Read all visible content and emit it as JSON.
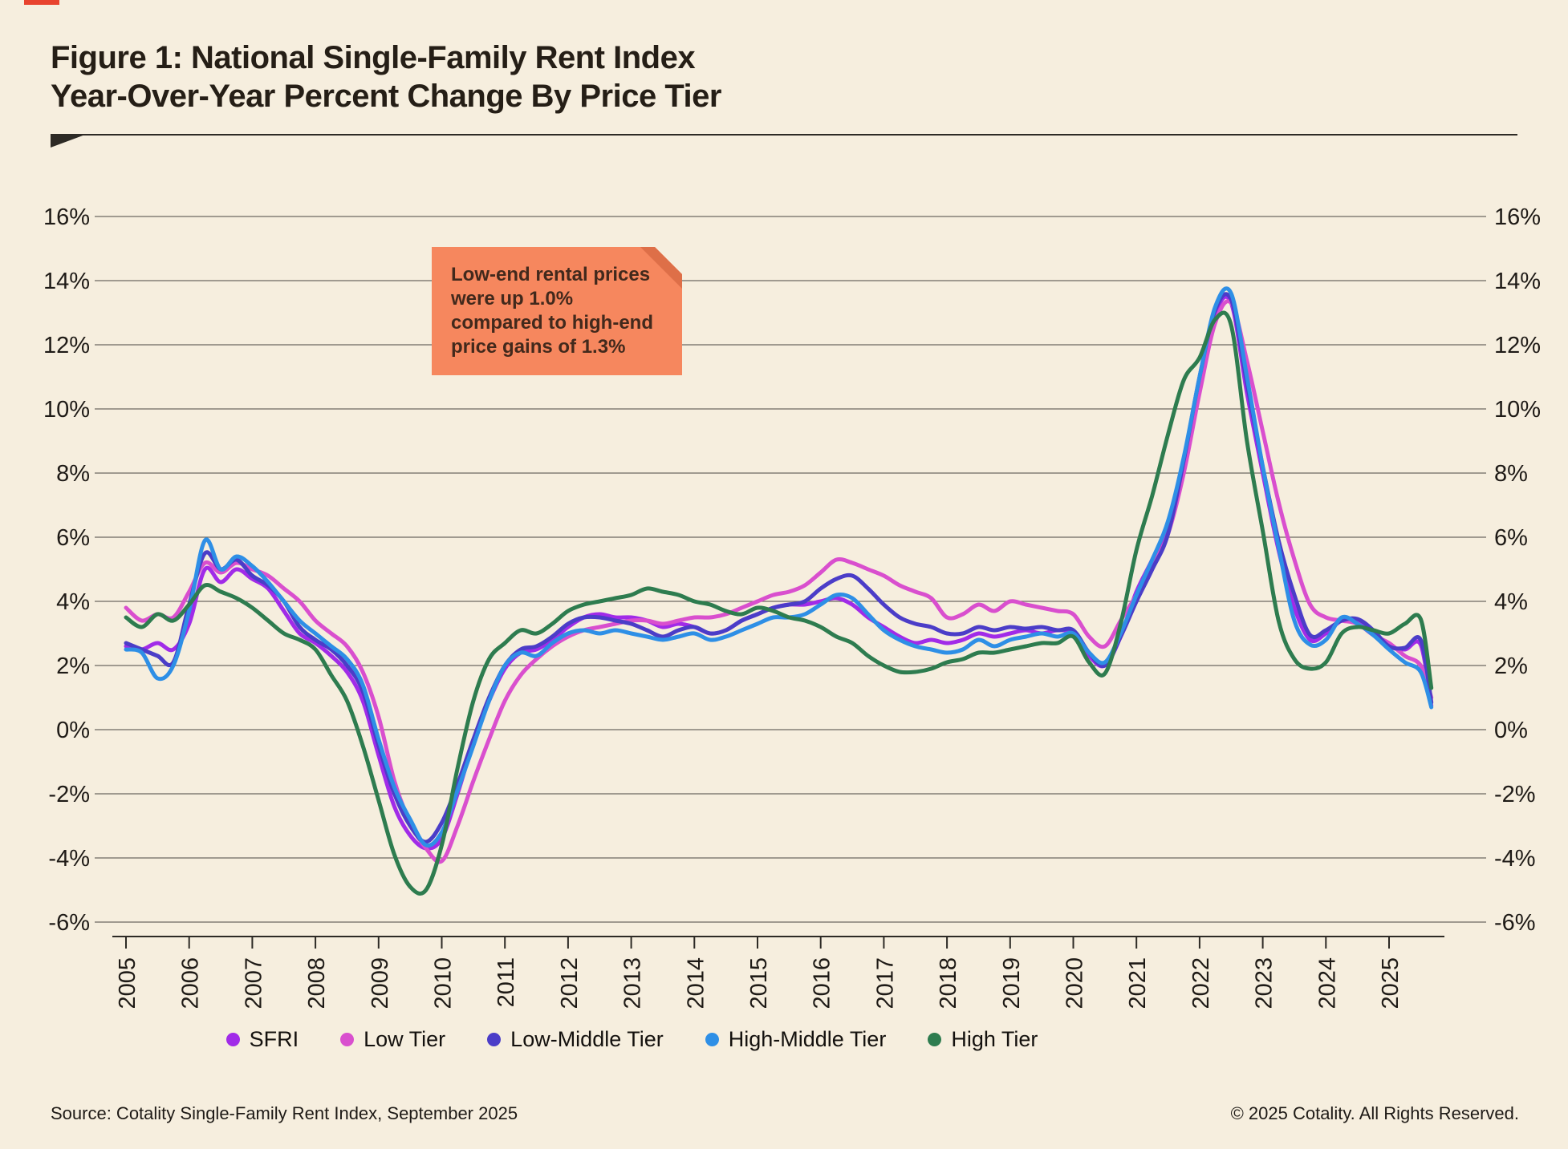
{
  "title": {
    "line1": "Figure 1: National Single-Family Rent Index",
    "line2": "Year-Over-Year Percent Change By Price Tier"
  },
  "callout": {
    "text": "Low-end rental prices were up 1.0% compared to high-end price gains of 1.3%",
    "background": "#f6875e",
    "fold_color": "#de6f48"
  },
  "footer": {
    "source": "Source: Cotality Single-Family Rent Index, September 2025",
    "copyright": "© 2025 Cotality. All Rights Reserved."
  },
  "colors": {
    "background": "#f6eede",
    "text": "#1e1a16",
    "grid": "#54514b",
    "axis": "#2d2a25",
    "top_accent": "#e8432e"
  },
  "chart_data": {
    "type": "line",
    "title": "National Single-Family Rent Index Year-Over-Year Percent Change By Price Tier",
    "xlabel": "",
    "ylabel": "Year-over-year percent change",
    "unit": "%",
    "grid": true,
    "legend_position": "bottom",
    "ylim": [
      -6,
      16
    ],
    "xlim": [
      2004.8,
      2025.9
    ],
    "y_ticks": [
      16,
      14,
      12,
      10,
      8,
      6,
      4,
      2,
      0,
      -2,
      -4,
      -6
    ],
    "x_ticks": [
      2005,
      2006,
      2007,
      2008,
      2009,
      2010,
      2011,
      2012,
      2013,
      2014,
      2015,
      2016,
      2017,
      2018,
      2019,
      2020,
      2021,
      2022,
      2023,
      2024,
      2025
    ],
    "sampling": "quarterly estimates read from plotted monthly lines, Jan 2005 - Sep 2025",
    "x_years": [
      2005.0,
      2005.25,
      2005.5,
      2005.75,
      2006.0,
      2006.25,
      2006.5,
      2006.75,
      2007.0,
      2007.25,
      2007.5,
      2007.75,
      2008.0,
      2008.25,
      2008.5,
      2008.75,
      2009.0,
      2009.25,
      2009.5,
      2009.75,
      2010.0,
      2010.25,
      2010.5,
      2010.75,
      2011.0,
      2011.25,
      2011.5,
      2011.75,
      2012.0,
      2012.25,
      2012.5,
      2012.75,
      2013.0,
      2013.25,
      2013.5,
      2013.75,
      2014.0,
      2014.25,
      2014.5,
      2014.75,
      2015.0,
      2015.25,
      2015.5,
      2015.75,
      2016.0,
      2016.25,
      2016.5,
      2016.75,
      2017.0,
      2017.25,
      2017.5,
      2017.75,
      2018.0,
      2018.25,
      2018.5,
      2018.75,
      2019.0,
      2019.25,
      2019.5,
      2019.75,
      2020.0,
      2020.25,
      2020.5,
      2020.75,
      2021.0,
      2021.25,
      2021.5,
      2021.75,
      2022.0,
      2022.25,
      2022.5,
      2022.75,
      2023.0,
      2023.25,
      2023.5,
      2023.75,
      2024.0,
      2024.25,
      2024.5,
      2024.75,
      2025.0,
      2025.25,
      2025.5,
      2025.67
    ],
    "series": [
      {
        "name": "SFRI",
        "color": "#a12be8",
        "values": [
          2.6,
          2.5,
          2.7,
          2.5,
          3.3,
          5.0,
          4.6,
          5.0,
          4.7,
          4.4,
          3.7,
          3.0,
          2.7,
          2.3,
          1.8,
          0.9,
          -0.8,
          -2.4,
          -3.3,
          -3.7,
          -3.4,
          -2.0,
          -0.4,
          0.9,
          1.9,
          2.4,
          2.5,
          2.8,
          3.2,
          3.5,
          3.6,
          3.5,
          3.5,
          3.4,
          3.2,
          3.3,
          3.2,
          3.0,
          3.1,
          3.4,
          3.6,
          3.8,
          3.9,
          3.9,
          4.0,
          4.1,
          3.9,
          3.5,
          3.2,
          2.9,
          2.7,
          2.8,
          2.7,
          2.8,
          3.0,
          2.9,
          3.0,
          3.1,
          3.0,
          3.1,
          3.0,
          2.3,
          2.0,
          2.9,
          4.3,
          5.3,
          6.4,
          8.3,
          10.9,
          13.0,
          13.3,
          10.5,
          8.0,
          5.6,
          3.8,
          2.8,
          3.0,
          3.4,
          3.35,
          3.05,
          2.6,
          2.5,
          2.65,
          0.75
        ]
      },
      {
        "name": "Low Tier",
        "color": "#d94fce",
        "values": [
          3.8,
          3.4,
          3.6,
          3.5,
          4.3,
          5.2,
          4.9,
          5.2,
          5.0,
          4.8,
          4.4,
          4.0,
          3.4,
          3.0,
          2.6,
          1.8,
          0.4,
          -1.6,
          -2.9,
          -3.7,
          -4.1,
          -3.0,
          -1.6,
          -0.3,
          0.9,
          1.7,
          2.2,
          2.6,
          2.9,
          3.1,
          3.2,
          3.3,
          3.4,
          3.4,
          3.3,
          3.4,
          3.5,
          3.5,
          3.6,
          3.8,
          4.0,
          4.2,
          4.3,
          4.5,
          4.9,
          5.3,
          5.2,
          5.0,
          4.8,
          4.5,
          4.3,
          4.1,
          3.5,
          3.6,
          3.9,
          3.7,
          4.0,
          3.9,
          3.8,
          3.7,
          3.6,
          2.9,
          2.6,
          3.4,
          4.2,
          5.1,
          6.1,
          8.0,
          10.5,
          12.7,
          13.3,
          11.5,
          9.3,
          7.1,
          5.3,
          3.9,
          3.5,
          3.4,
          3.3,
          2.95,
          2.7,
          2.3,
          2.0,
          1.0
        ]
      },
      {
        "name": "Low-Middle Tier",
        "color": "#4b3dc8",
        "values": [
          2.7,
          2.5,
          2.3,
          2.1,
          3.9,
          5.5,
          5.0,
          5.3,
          4.8,
          4.5,
          4.0,
          3.2,
          2.8,
          2.5,
          2.0,
          1.2,
          -0.5,
          -2.0,
          -3.0,
          -3.5,
          -2.9,
          -1.7,
          -0.3,
          1.0,
          2.0,
          2.5,
          2.6,
          2.9,
          3.3,
          3.5,
          3.5,
          3.4,
          3.3,
          3.1,
          2.9,
          3.1,
          3.2,
          3.0,
          3.1,
          3.4,
          3.6,
          3.8,
          3.9,
          4.0,
          4.4,
          4.7,
          4.8,
          4.4,
          3.9,
          3.5,
          3.3,
          3.2,
          3.0,
          3.0,
          3.2,
          3.1,
          3.2,
          3.15,
          3.2,
          3.1,
          3.1,
          2.4,
          2.0,
          2.9,
          4.0,
          5.0,
          6.1,
          8.4,
          11.0,
          13.1,
          13.4,
          10.8,
          8.2,
          5.9,
          4.2,
          2.95,
          3.1,
          3.4,
          3.45,
          3.1,
          2.6,
          2.55,
          2.8,
          0.85
        ]
      },
      {
        "name": "High-Middle Tier",
        "color": "#2e8fe6",
        "values": [
          2.5,
          2.4,
          1.6,
          2.0,
          3.7,
          5.9,
          5.0,
          5.4,
          5.1,
          4.6,
          4.0,
          3.4,
          3.0,
          2.6,
          2.2,
          1.4,
          -0.3,
          -1.8,
          -2.8,
          -3.6,
          -3.2,
          -1.9,
          -0.5,
          0.9,
          2.0,
          2.4,
          2.3,
          2.7,
          3.0,
          3.1,
          3.0,
          3.1,
          3.0,
          2.9,
          2.8,
          2.9,
          3.0,
          2.8,
          2.9,
          3.1,
          3.3,
          3.5,
          3.5,
          3.6,
          3.9,
          4.2,
          4.1,
          3.6,
          3.1,
          2.8,
          2.6,
          2.5,
          2.4,
          2.5,
          2.8,
          2.6,
          2.8,
          2.9,
          3.0,
          2.9,
          3.0,
          2.4,
          2.1,
          3.0,
          4.2,
          5.3,
          6.5,
          8.5,
          11.0,
          13.2,
          13.6,
          11.0,
          8.2,
          5.7,
          3.4,
          2.65,
          2.8,
          3.5,
          3.3,
          2.95,
          2.5,
          2.1,
          1.8,
          0.7
        ]
      },
      {
        "name": "High Tier",
        "color": "#2e7c4f",
        "values": [
          3.5,
          3.2,
          3.6,
          3.4,
          3.9,
          4.5,
          4.3,
          4.1,
          3.8,
          3.4,
          3.0,
          2.8,
          2.5,
          1.7,
          0.9,
          -0.5,
          -2.2,
          -3.9,
          -4.9,
          -5.0,
          -3.6,
          -1.2,
          0.9,
          2.2,
          2.7,
          3.1,
          3.0,
          3.3,
          3.7,
          3.9,
          4.0,
          4.1,
          4.2,
          4.4,
          4.3,
          4.2,
          4.0,
          3.9,
          3.7,
          3.6,
          3.8,
          3.7,
          3.5,
          3.4,
          3.2,
          2.9,
          2.7,
          2.3,
          2.0,
          1.8,
          1.8,
          1.9,
          2.1,
          2.2,
          2.4,
          2.4,
          2.5,
          2.6,
          2.7,
          2.7,
          2.9,
          2.1,
          1.75,
          3.3,
          5.6,
          7.3,
          9.2,
          10.9,
          11.6,
          12.8,
          12.6,
          9.0,
          6.2,
          3.4,
          2.2,
          1.9,
          2.1,
          3.0,
          3.2,
          3.1,
          3.0,
          3.3,
          3.45,
          1.3
        ]
      }
    ]
  }
}
